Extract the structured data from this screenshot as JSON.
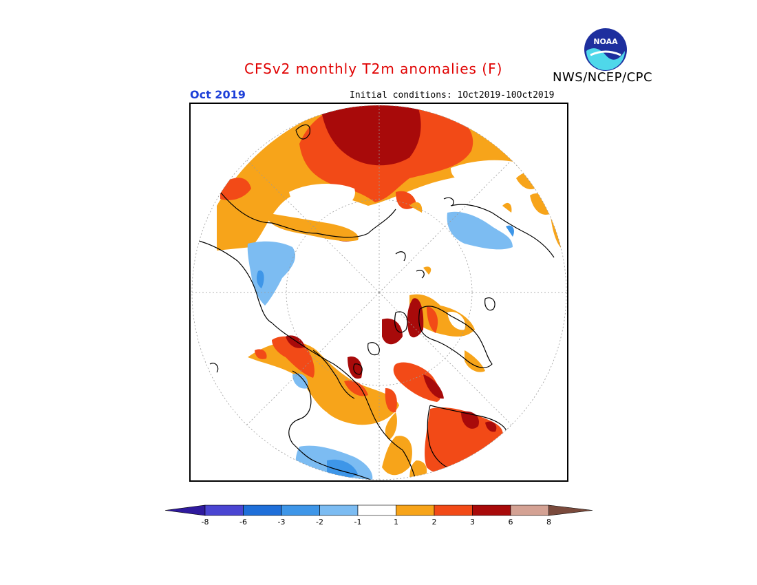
{
  "title": "CFSv2 monthly T2m anomalies (F)",
  "organization": "NWS/NCEP/CPC",
  "logo_text": "NOAA",
  "month": "Oct 2019",
  "initial_conditions": "Initial conditions: 1Oct2019-10Oct2019",
  "colorbar": {
    "labels": [
      "-8",
      "-6",
      "-3",
      "-2",
      "-1",
      "1",
      "2",
      "3",
      "6",
      "8"
    ],
    "colors": [
      "#2f1a9e",
      "#4a45d2",
      "#1f6fd9",
      "#3e96e8",
      "#7cbcf2",
      "#ffffff",
      "#f7a41a",
      "#f24a17",
      "#a80a0a",
      "#d4a294",
      "#7a4a3c"
    ]
  },
  "anomaly_colors": {
    "cold_-1": "#7cbcf2",
    "cold_-2": "#3e96e8",
    "warm_1": "#f7a41a",
    "warm_2": "#f24a17",
    "warm_3": "#a80a0a"
  }
}
